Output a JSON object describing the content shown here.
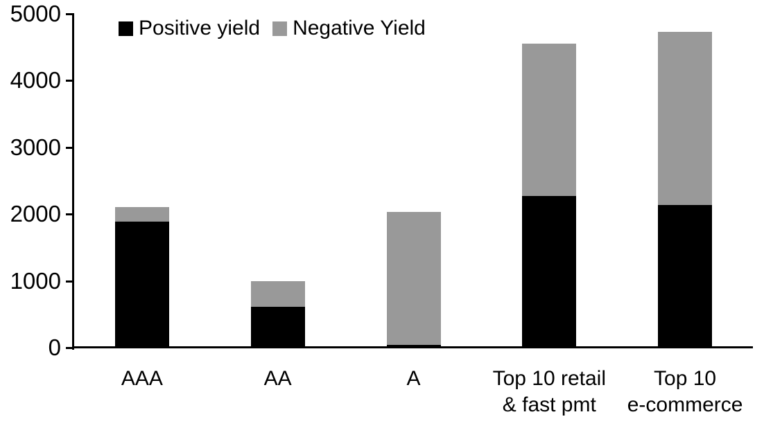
{
  "chart_data": {
    "type": "bar",
    "stacked": true,
    "title": "",
    "xlabel": "",
    "ylabel": "",
    "categories": [
      "AAA",
      "AA",
      "A",
      "Top 10 retail & fast pmt",
      "Top 10 e-commerce"
    ],
    "category_lines": [
      [
        "AAA"
      ],
      [
        "AA"
      ],
      [
        "A"
      ],
      [
        "Top 10 retail",
        "& fast pmt"
      ],
      [
        "Top 10",
        "e-commerce"
      ]
    ],
    "series": [
      {
        "name": "Positive yield",
        "color": "#000000",
        "values": [
          1890,
          615,
          45,
          2270,
          2140
        ]
      },
      {
        "name": "Negative Yield",
        "color": "#999999",
        "values": [
          220,
          385,
          1985,
          2280,
          2590
        ]
      }
    ],
    "stack_totals": [
      2110,
      1000,
      2030,
      4550,
      4730
    ],
    "ylim": [
      0,
      5000
    ],
    "yticks": [
      "0",
      "1000",
      "2000",
      "3000",
      "4000",
      "5000"
    ],
    "ytick_values": [
      0,
      1000,
      2000,
      3000,
      4000,
      5000
    ],
    "grid": false,
    "legend_position": "top-left-inside",
    "axis_color": "#000000",
    "background_color": "#ffffff"
  }
}
